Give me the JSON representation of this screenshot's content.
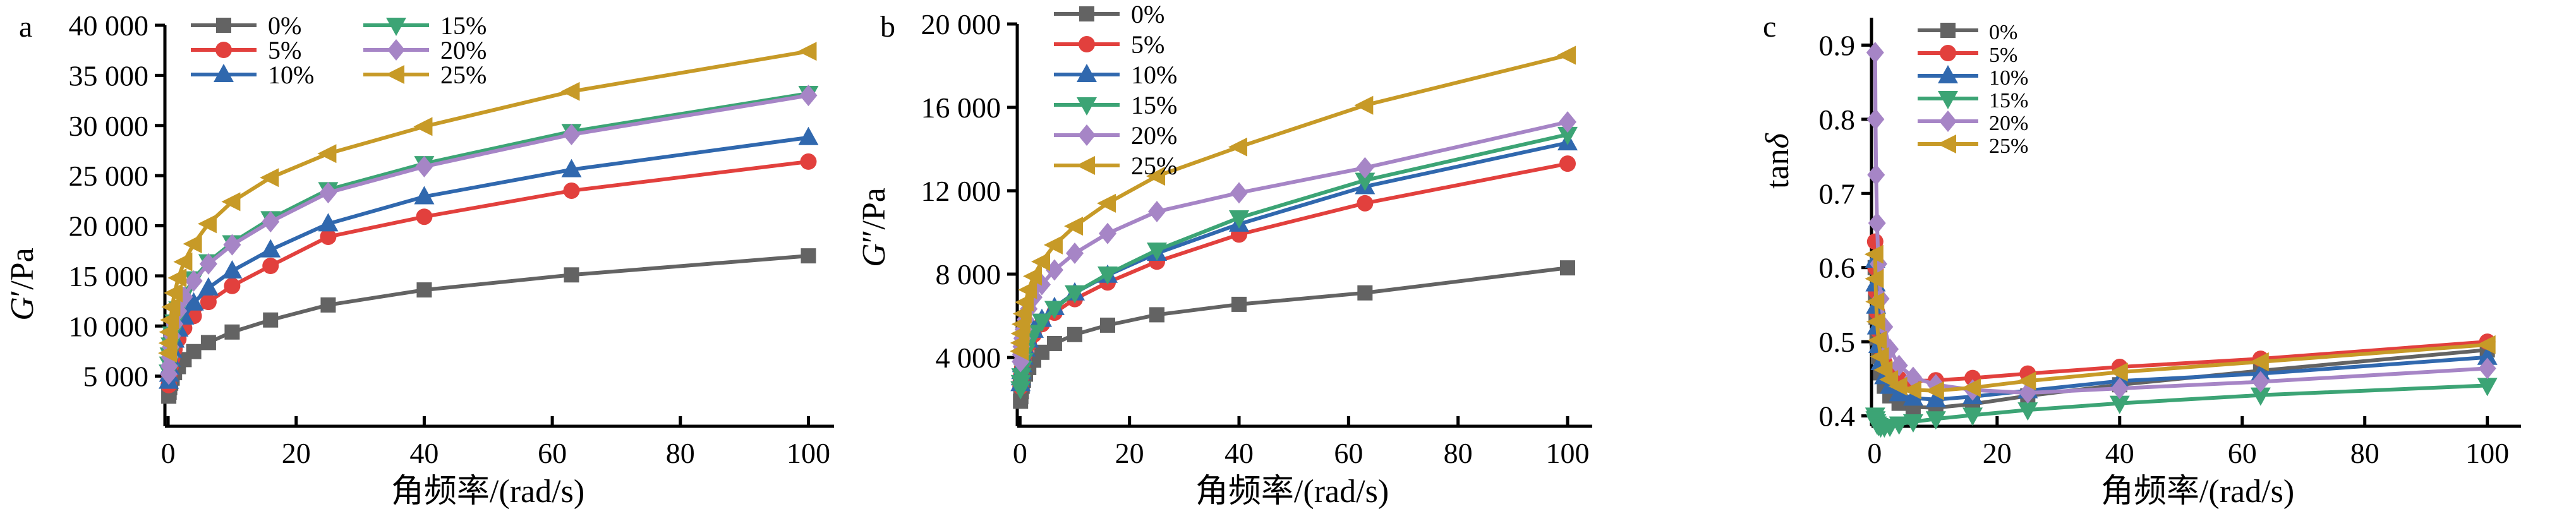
{
  "figure": {
    "background": "#ffffff"
  },
  "series_colors": {
    "0%": "#636363",
    "5%": "#e2403d",
    "10%": "#3068ae",
    "15%": "#3ca475",
    "20%": "#a685c6",
    "25%": "#c79a27"
  },
  "chart_data": [
    {
      "panel": "a",
      "type": "line",
      "title": "",
      "xlabel": "角频率/(rad/s)",
      "ylabel": "G′/Pa",
      "xlim": [
        -0.5,
        104
      ],
      "ylim": [
        0,
        40000
      ],
      "xticks": {
        "values": [
          0,
          20,
          40,
          60,
          80,
          100
        ],
        "labels": [
          "0",
          "20",
          "40",
          "60",
          "80",
          "100"
        ]
      },
      "yticks": {
        "values": [
          5000,
          10000,
          15000,
          20000,
          25000,
          30000,
          35000,
          40000
        ],
        "labels": [
          "5 000",
          "10 000",
          "15 000",
          "20 000",
          "25 000",
          "30 000",
          "35 000",
          "40 000"
        ]
      },
      "x": [
        0.1,
        0.16,
        0.25,
        0.4,
        0.63,
        1,
        1.6,
        2.5,
        4,
        6.3,
        10,
        16,
        25,
        40,
        63,
        100
      ],
      "legend_position": "top-left-two-columns",
      "series": [
        {
          "name": "0%",
          "color": "#636363",
          "marker": "square",
          "values": [
            3000,
            3400,
            3850,
            4300,
            4800,
            5350,
            5950,
            6650,
            7450,
            8350,
            9400,
            10600,
            12100,
            13600,
            15100,
            17000
          ]
        },
        {
          "name": "5%",
          "color": "#e2403d",
          "marker": "circle",
          "values": [
            4100,
            4700,
            5300,
            6000,
            6800,
            7700,
            8700,
            9800,
            11000,
            12400,
            14000,
            16000,
            18900,
            20900,
            23500,
            26400
          ]
        },
        {
          "name": "10%",
          "color": "#3068ae",
          "marker": "triangle-up",
          "values": [
            4500,
            5200,
            5900,
            6700,
            7600,
            8600,
            9700,
            10900,
            12300,
            13800,
            15500,
            17600,
            20200,
            22900,
            25600,
            28800
          ]
        },
        {
          "name": "15%",
          "color": "#3ca475",
          "marker": "triangle-down",
          "values": [
            5400,
            6200,
            7100,
            8100,
            9200,
            10400,
            11700,
            13100,
            14700,
            16400,
            18300,
            20700,
            23600,
            26200,
            29400,
            33200
          ]
        },
        {
          "name": "20%",
          "color": "#a685c6",
          "marker": "diamond",
          "values": [
            5200,
            6000,
            6900,
            7900,
            9000,
            10200,
            11500,
            12900,
            14500,
            16200,
            18100,
            20400,
            23300,
            25900,
            29100,
            33000
          ]
        },
        {
          "name": "25%",
          "color": "#c79a27",
          "marker": "triangle-left",
          "values": [
            7300,
            8300,
            9400,
            10600,
            11900,
            13300,
            14800,
            16400,
            18200,
            20200,
            22400,
            24800,
            27200,
            29900,
            33400,
            37400
          ]
        }
      ]
    },
    {
      "panel": "b",
      "type": "line",
      "title": "",
      "xlabel": "角频率/(rad/s)",
      "ylabel": "G″/Pa",
      "xlim": [
        -0.5,
        104.5
      ],
      "ylim": [
        700,
        20000
      ],
      "xticks": {
        "values": [
          0,
          20,
          40,
          60,
          80,
          100
        ],
        "labels": [
          "0",
          "20",
          "40",
          "60",
          "80",
          "100"
        ]
      },
      "yticks": {
        "values": [
          4000,
          8000,
          12000,
          16000,
          20000
        ],
        "labels": [
          "4 000",
          "8 000",
          "12 000",
          "16 000",
          "20 000"
        ]
      },
      "x": [
        0.1,
        0.16,
        0.25,
        0.4,
        0.63,
        1,
        1.6,
        2.5,
        4,
        6.3,
        10,
        16,
        25,
        40,
        63,
        100
      ],
      "legend_position": "top-left-single-column",
      "series": [
        {
          "name": "0%",
          "color": "#636363",
          "marker": "square",
          "values": [
            1900,
            2120,
            2360,
            2620,
            2900,
            3200,
            3520,
            3870,
            4250,
            4670,
            5100,
            5550,
            6050,
            6550,
            7100,
            8300
          ]
        },
        {
          "name": "5%",
          "color": "#e2403d",
          "marker": "circle",
          "values": [
            2600,
            2880,
            3180,
            3500,
            3850,
            4230,
            4650,
            5100,
            5600,
            6150,
            6800,
            7600,
            8600,
            9900,
            11400,
            13300
          ]
        },
        {
          "name": "10%",
          "color": "#3068ae",
          "marker": "triangle-up",
          "values": [
            2750,
            3030,
            3330,
            3660,
            4020,
            4410,
            4840,
            5310,
            5830,
            6400,
            7100,
            7950,
            9000,
            10400,
            12200,
            14300
          ]
        },
        {
          "name": "15%",
          "color": "#3ca475",
          "marker": "triangle-down",
          "values": [
            2500,
            2800,
            3120,
            3470,
            3850,
            4260,
            4710,
            5200,
            5740,
            6350,
            7100,
            8000,
            9150,
            10700,
            12500,
            14700
          ]
        },
        {
          "name": "20%",
          "color": "#a685c6",
          "marker": "diamond",
          "values": [
            3800,
            4150,
            4520,
            4920,
            5350,
            5820,
            6330,
            6890,
            7500,
            8200,
            9000,
            9950,
            11000,
            11900,
            13100,
            15300
          ]
        },
        {
          "name": "25%",
          "color": "#c79a27",
          "marker": "triangle-left",
          "values": [
            4300,
            4700,
            5150,
            5600,
            6100,
            6650,
            7250,
            7900,
            8600,
            9400,
            10300,
            11400,
            12700,
            14100,
            16100,
            18500
          ]
        }
      ]
    },
    {
      "panel": "c",
      "type": "line",
      "title": "",
      "xlabel": "角频率/(rad/s)",
      "ylabel": "tanδ",
      "xlim": [
        -0.5,
        105.5
      ],
      "ylim": [
        0.386,
        0.937
      ],
      "xticks": {
        "values": [
          0,
          20,
          40,
          60,
          80,
          100
        ],
        "labels": [
          "0",
          "20",
          "40",
          "60",
          "80",
          "100"
        ]
      },
      "yticks": {
        "values": [
          0.4,
          0.5,
          0.6,
          0.7,
          0.8,
          0.9
        ],
        "labels": [
          "0.4",
          "0.5",
          "0.6",
          "0.7",
          "0.8",
          "0.9"
        ]
      },
      "x": [
        0.1,
        0.16,
        0.25,
        0.4,
        0.63,
        1,
        1.6,
        2.5,
        4,
        6.3,
        10,
        16,
        25,
        40,
        63,
        100
      ],
      "legend_position": "top-left-single-column",
      "series": [
        {
          "name": "0%",
          "color": "#636363",
          "marker": "square",
          "values": [
            0.6,
            0.565,
            0.533,
            0.505,
            0.48,
            0.458,
            0.44,
            0.427,
            0.417,
            0.412,
            0.411,
            0.416,
            0.427,
            0.442,
            0.461,
            0.489
          ]
        },
        {
          "name": "5%",
          "color": "#e2403d",
          "marker": "circle",
          "values": [
            0.635,
            0.6,
            0.568,
            0.54,
            0.515,
            0.492,
            0.472,
            0.458,
            0.45,
            0.447,
            0.448,
            0.451,
            0.457,
            0.466,
            0.477,
            0.5
          ]
        },
        {
          "name": "10%",
          "color": "#3068ae",
          "marker": "triangle-up",
          "values": [
            0.61,
            0.578,
            0.548,
            0.52,
            0.495,
            0.472,
            0.453,
            0.44,
            0.43,
            0.424,
            0.422,
            0.426,
            0.434,
            0.447,
            0.457,
            0.479
          ]
        },
        {
          "name": "15%",
          "color": "#3ca475",
          "marker": "triangle-down",
          "values": [
            0.401,
            0.396,
            0.392,
            0.389,
            0.387,
            0.385,
            0.385,
            0.386,
            0.389,
            0.392,
            0.396,
            0.401,
            0.408,
            0.417,
            0.428,
            0.441
          ]
        },
        {
          "name": "20%",
          "color": "#a685c6",
          "marker": "diamond",
          "values": [
            0.89,
            0.8,
            0.725,
            0.66,
            0.605,
            0.558,
            0.52,
            0.49,
            0.468,
            0.452,
            0.442,
            0.435,
            0.431,
            0.437,
            0.446,
            0.464
          ]
        },
        {
          "name": "25%",
          "color": "#c79a27",
          "marker": "triangle-left",
          "values": [
            0.618,
            0.585,
            0.554,
            0.527,
            0.502,
            0.48,
            0.462,
            0.449,
            0.44,
            0.435,
            0.434,
            0.438,
            0.447,
            0.459,
            0.473,
            0.496
          ]
        }
      ]
    }
  ]
}
